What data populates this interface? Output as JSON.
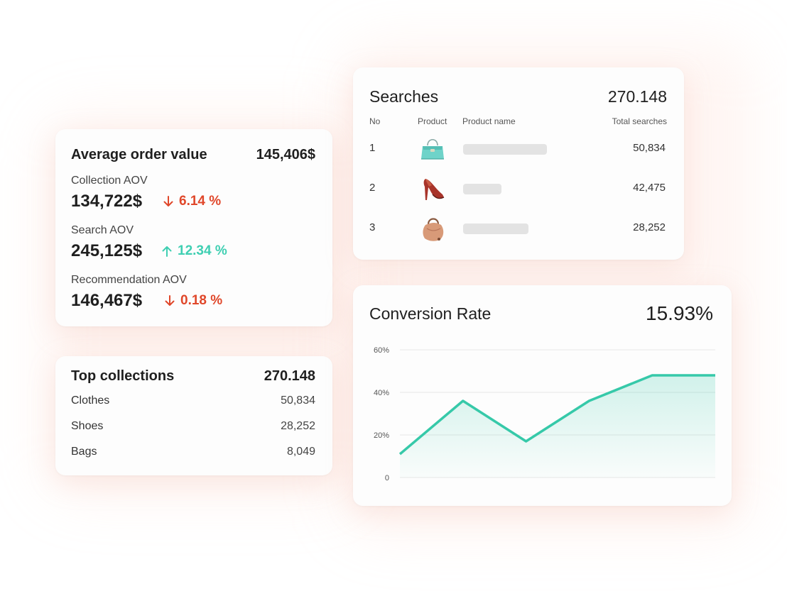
{
  "colors": {
    "down": "#e0472a",
    "up": "#3fcfb2",
    "line": "#36c9a9",
    "grid": "#e6e6e6"
  },
  "aov": {
    "title": "Average order value",
    "total": "145,406$",
    "items": [
      {
        "label": "Collection AOV",
        "value": "134,722$",
        "change": "6.14 %",
        "direction": "down"
      },
      {
        "label": "Search AOV",
        "value": "245,125$",
        "change": "12.34 %",
        "direction": "up"
      },
      {
        "label": "Recommendation AOV",
        "value": "146,467$",
        "change": "0.18 %",
        "direction": "down"
      }
    ]
  },
  "collections": {
    "title": "Top collections",
    "total": "270.148",
    "items": [
      {
        "name": "Clothes",
        "value": "50,834"
      },
      {
        "name": "Shoes",
        "value": "28,252"
      },
      {
        "name": "Bags",
        "value": "8,049"
      }
    ]
  },
  "searches": {
    "title": "Searches",
    "total": "270.148",
    "columns": {
      "no": "No",
      "product": "Product",
      "product_name": "Product name",
      "total_searches": "Total searches"
    },
    "rows": [
      {
        "no": "1",
        "image": "teal-handbag-icon",
        "searches": "50,834"
      },
      {
        "no": "2",
        "image": "red-high-heel-shoe-icon",
        "searches": "42,475"
      },
      {
        "no": "3",
        "image": "tan-hobo-bag-icon",
        "searches": "28,252"
      }
    ]
  },
  "conversion": {
    "title": "Conversion Rate",
    "total": "15.93%"
  },
  "chart_data": {
    "type": "area",
    "title": "Conversion Rate",
    "x": [
      0,
      1,
      2,
      3,
      4,
      5
    ],
    "values": [
      11,
      36,
      17,
      36,
      48,
      48
    ],
    "ylim": [
      0,
      60
    ],
    "yticks": [
      0,
      20,
      40,
      60
    ],
    "ytick_labels": [
      "0",
      "20%",
      "40%",
      "60%"
    ],
    "grid": true,
    "legend": "none"
  }
}
